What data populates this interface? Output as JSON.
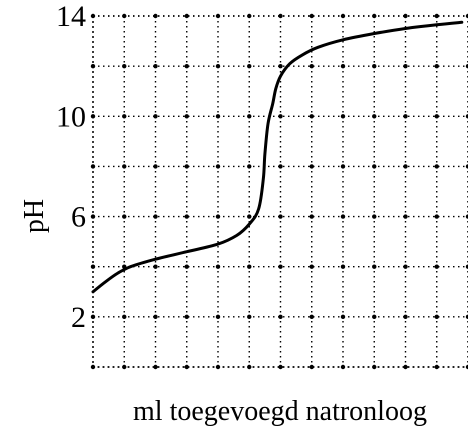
{
  "chart_data": {
    "type": "line",
    "title": "",
    "xlabel": "ml toegevoegd natronloog",
    "ylabel": "pH",
    "grid": true,
    "legend": "none",
    "xlim": [
      0,
      12
    ],
    "ylim": [
      0,
      14
    ],
    "y_ticks": [
      {
        "value": 2,
        "label": "2"
      },
      {
        "value": 6,
        "label": "6"
      },
      {
        "value": 10,
        "label": "10"
      },
      {
        "value": 14,
        "label": "14"
      }
    ],
    "x_gridlines": [
      0,
      1,
      2,
      3,
      4,
      5,
      6,
      7,
      8,
      9,
      10,
      11,
      12
    ],
    "y_gridlines": [
      0,
      2,
      4,
      6,
      8,
      10,
      12,
      14
    ],
    "series": [
      {
        "x": [
          0,
          0.4,
          0.8,
          1.2,
          2,
          3,
          4,
          4.6,
          5,
          5.3,
          5.45,
          5.5,
          5.6,
          5.75,
          5.85,
          6,
          6.3,
          6.7,
          7.2,
          8,
          9,
          10,
          11,
          11.8
        ],
        "y": [
          3.0,
          3.4,
          3.75,
          4.0,
          4.3,
          4.6,
          4.9,
          5.25,
          5.7,
          6.3,
          7.5,
          8.5,
          9.7,
          10.5,
          11.1,
          11.6,
          12.1,
          12.45,
          12.75,
          13.05,
          13.3,
          13.5,
          13.65,
          13.75
        ]
      }
    ]
  }
}
